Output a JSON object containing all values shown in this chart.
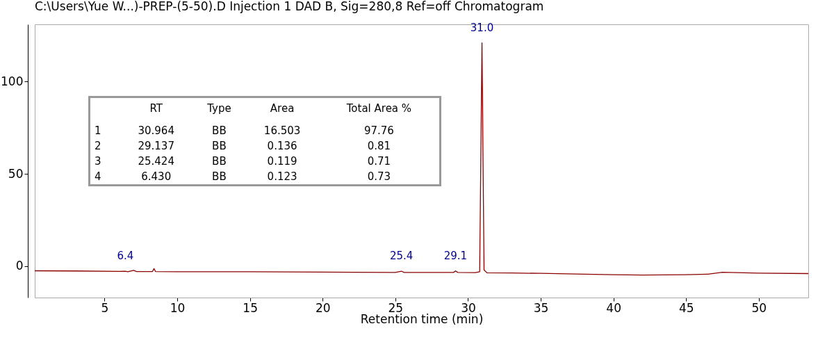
{
  "chart_data": {
    "type": "line",
    "title": "C:\\Users\\Yue W...)-PREP-(5-50).D Injection 1 DAD B, Sig=280,8 Ref=off Chromatogram",
    "xlabel": "Retention time (min)",
    "x": [
      0.2,
      3,
      6.0,
      6.43,
      6.6,
      7.0,
      7.2,
      8.3,
      8.4,
      8.5,
      10,
      15,
      20,
      25.0,
      25.42,
      25.6,
      28,
      29.0,
      29.14,
      29.3,
      30.5,
      30.8,
      30.96,
      31.1,
      31.3,
      33,
      35,
      38,
      40,
      42,
      45,
      46.5,
      47.5,
      50,
      53.4
    ],
    "series": [
      {
        "color": "#8b0000",
        "values": [
          -2.5,
          -2.6,
          -2.8,
          -2.7,
          -3.0,
          -2.3,
          -2.9,
          -2.9,
          -1.3,
          -2.9,
          -3.0,
          -3.0,
          -3.2,
          -3.4,
          -2.7,
          -3.4,
          -3.4,
          -3.4,
          -2.6,
          -3.4,
          -3.5,
          -3.0,
          121,
          -2.0,
          -3.6,
          -3.7,
          -3.9,
          -4.3,
          -4.6,
          -4.8,
          -4.6,
          -4.3,
          -3.3,
          -3.8,
          -4.0
        ]
      }
    ],
    "xlim": [
      0.2,
      53.4
    ],
    "xticks": [
      5,
      10,
      15,
      20,
      25,
      30,
      35,
      40,
      45,
      50
    ],
    "ylim": [
      -17,
      131
    ],
    "yticks": [
      0,
      50,
      100
    ],
    "grid": false,
    "annotations": [
      {
        "text": "6.4",
        "x": 6.43,
        "y": -2.7
      },
      {
        "text": "25.4",
        "x": 25.42,
        "y": -2.7
      },
      {
        "text": "29.1",
        "x": 29.14,
        "y": -2.6
      },
      {
        "text": "31.0",
        "x": 30.96,
        "y": 121
      },
      "\tRT\tType\tArea\tTotal Area %",
      "1\t30.964\tBB\t16.503\t97.76",
      "2\t29.137\tBB\t0.136\t0.81",
      "3\t25.424\tBB\t0.119\t0.71",
      "4\t6.430\tBB\t0.123\t0.73"
    ]
  }
}
